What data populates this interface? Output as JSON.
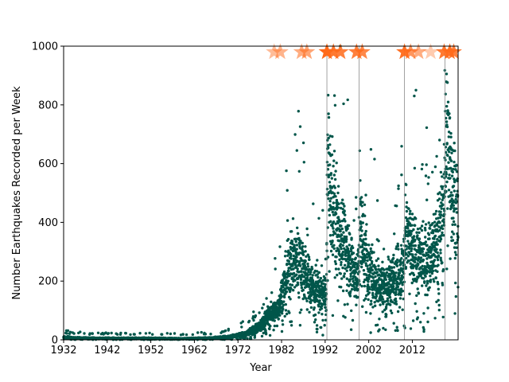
{
  "chart_data": {
    "type": "scatter",
    "title": "",
    "xlabel": "Year",
    "ylabel": "Number Earthquakes Recorded per Week",
    "xlim": [
      1932,
      2022.5
    ],
    "ylim": [
      0,
      1000
    ],
    "x_ticks": [
      "1932",
      "1942",
      "1952",
      "1962",
      "1972",
      "1982",
      "1992",
      "2002",
      "2012"
    ],
    "x_tick_values": [
      1932,
      1942,
      1952,
      1962,
      1972,
      1982,
      1992,
      2002,
      2012
    ],
    "y_ticks": [
      "0",
      "200",
      "400",
      "600",
      "800",
      "1000"
    ],
    "y_tick_values": [
      0,
      200,
      400,
      600,
      800,
      1000
    ],
    "grid": false,
    "colors": {
      "points": "#00564a",
      "stars": "#ff6a1a",
      "vlines": "#8c8c8c"
    },
    "event_lines_x": [
      1992.4,
      1999.8,
      2010.2,
      2019.5
    ],
    "event_stars": [
      {
        "x": 1980.3,
        "alpha": 0.45
      },
      {
        "x": 1981.7,
        "alpha": 0.5
      },
      {
        "x": 1986.6,
        "alpha": 0.55
      },
      {
        "x": 1987.8,
        "alpha": 0.6
      },
      {
        "x": 1992.4,
        "alpha": 1.0
      },
      {
        "x": 1993.9,
        "alpha": 0.9
      },
      {
        "x": 1995.5,
        "alpha": 0.85
      },
      {
        "x": 1999.2,
        "alpha": 0.85
      },
      {
        "x": 2000.5,
        "alpha": 0.8
      },
      {
        "x": 2010.2,
        "alpha": 0.95
      },
      {
        "x": 2011.6,
        "alpha": 0.7
      },
      {
        "x": 2013.4,
        "alpha": 0.55
      },
      {
        "x": 2016.2,
        "alpha": 0.35
      },
      {
        "x": 2019.3,
        "alpha": 0.9
      },
      {
        "x": 2020.6,
        "alpha": 0.95
      },
      {
        "x": 2021.5,
        "alpha": 0.85
      }
    ],
    "series": [
      {
        "trend_x": [
          1932,
          1935,
          1940,
          1950,
          1960,
          1966,
          1970,
          1974,
          1977,
          1979,
          1981,
          1983,
          1984,
          1986,
          1988,
          1990,
          1992.3,
          1992.5,
          1993,
          1995,
          1997,
          1999.5,
          2000,
          2002,
          2004,
          2006,
          2008,
          2010.1,
          2010.3,
          2012,
          2014,
          2016,
          2018,
          2019.4,
          2019.6,
          2020.5,
          2022.5
        ],
        "trend_y": [
          8,
          6,
          5,
          5,
          4,
          6,
          10,
          20,
          45,
          80,
          100,
          200,
          260,
          280,
          200,
          170,
          150,
          600,
          500,
          380,
          300,
          200,
          380,
          230,
          190,
          180,
          210,
          250,
          380,
          300,
          270,
          280,
          350,
          450,
          700,
          600,
          420
        ]
      }
    ]
  }
}
